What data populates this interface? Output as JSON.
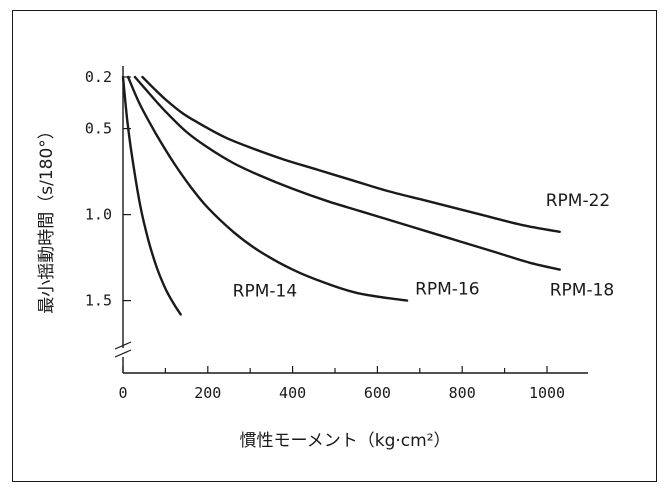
{
  "chart_data": {
    "type": "line",
    "xlabel": "慣性モーメント（kg·cm²）",
    "ylabel": "最小揺動時間（s/180°）",
    "x_ticks": [
      "0",
      "200",
      "400",
      "600",
      "800",
      "1000"
    ],
    "y_ticks": [
      "0.2",
      "0.5",
      "1.0",
      "1.5"
    ],
    "xlim": [
      0,
      1050
    ],
    "ylim": [
      0.2,
      1.65
    ],
    "axis_break_y": true,
    "grid": false,
    "colors": {
      "line": "#1a1a1a",
      "frame": "#1a1a1a"
    },
    "series": [
      {
        "name": "RPM-14",
        "x": [
          0,
          10,
          20,
          40,
          60,
          80,
          100,
          120,
          136
        ],
        "y": [
          0.2,
          0.45,
          0.64,
          0.94,
          1.15,
          1.31,
          1.43,
          1.52,
          1.58
        ]
      },
      {
        "name": "RPM-16",
        "x": [
          12,
          40,
          80,
          120,
          160,
          200,
          260,
          320,
          400,
          480,
          560,
          670
        ],
        "y": [
          0.2,
          0.36,
          0.54,
          0.7,
          0.84,
          0.96,
          1.1,
          1.21,
          1.32,
          1.4,
          1.46,
          1.5
        ]
      },
      {
        "name": "RPM-18",
        "x": [
          28,
          60,
          100,
          150,
          200,
          260,
          320,
          400,
          480,
          560,
          640,
          720,
          800,
          880,
          960,
          1030
        ],
        "y": [
          0.2,
          0.29,
          0.4,
          0.52,
          0.61,
          0.7,
          0.77,
          0.85,
          0.92,
          0.98,
          1.04,
          1.1,
          1.16,
          1.22,
          1.28,
          1.32
        ]
      },
      {
        "name": "RPM-22",
        "x": [
          46,
          70,
          100,
          140,
          180,
          240,
          300,
          380,
          460,
          540,
          620,
          700,
          780,
          860,
          940,
          1030
        ],
        "y": [
          0.2,
          0.26,
          0.33,
          0.41,
          0.47,
          0.55,
          0.61,
          0.68,
          0.74,
          0.8,
          0.86,
          0.91,
          0.96,
          1.01,
          1.06,
          1.1
        ]
      }
    ]
  }
}
